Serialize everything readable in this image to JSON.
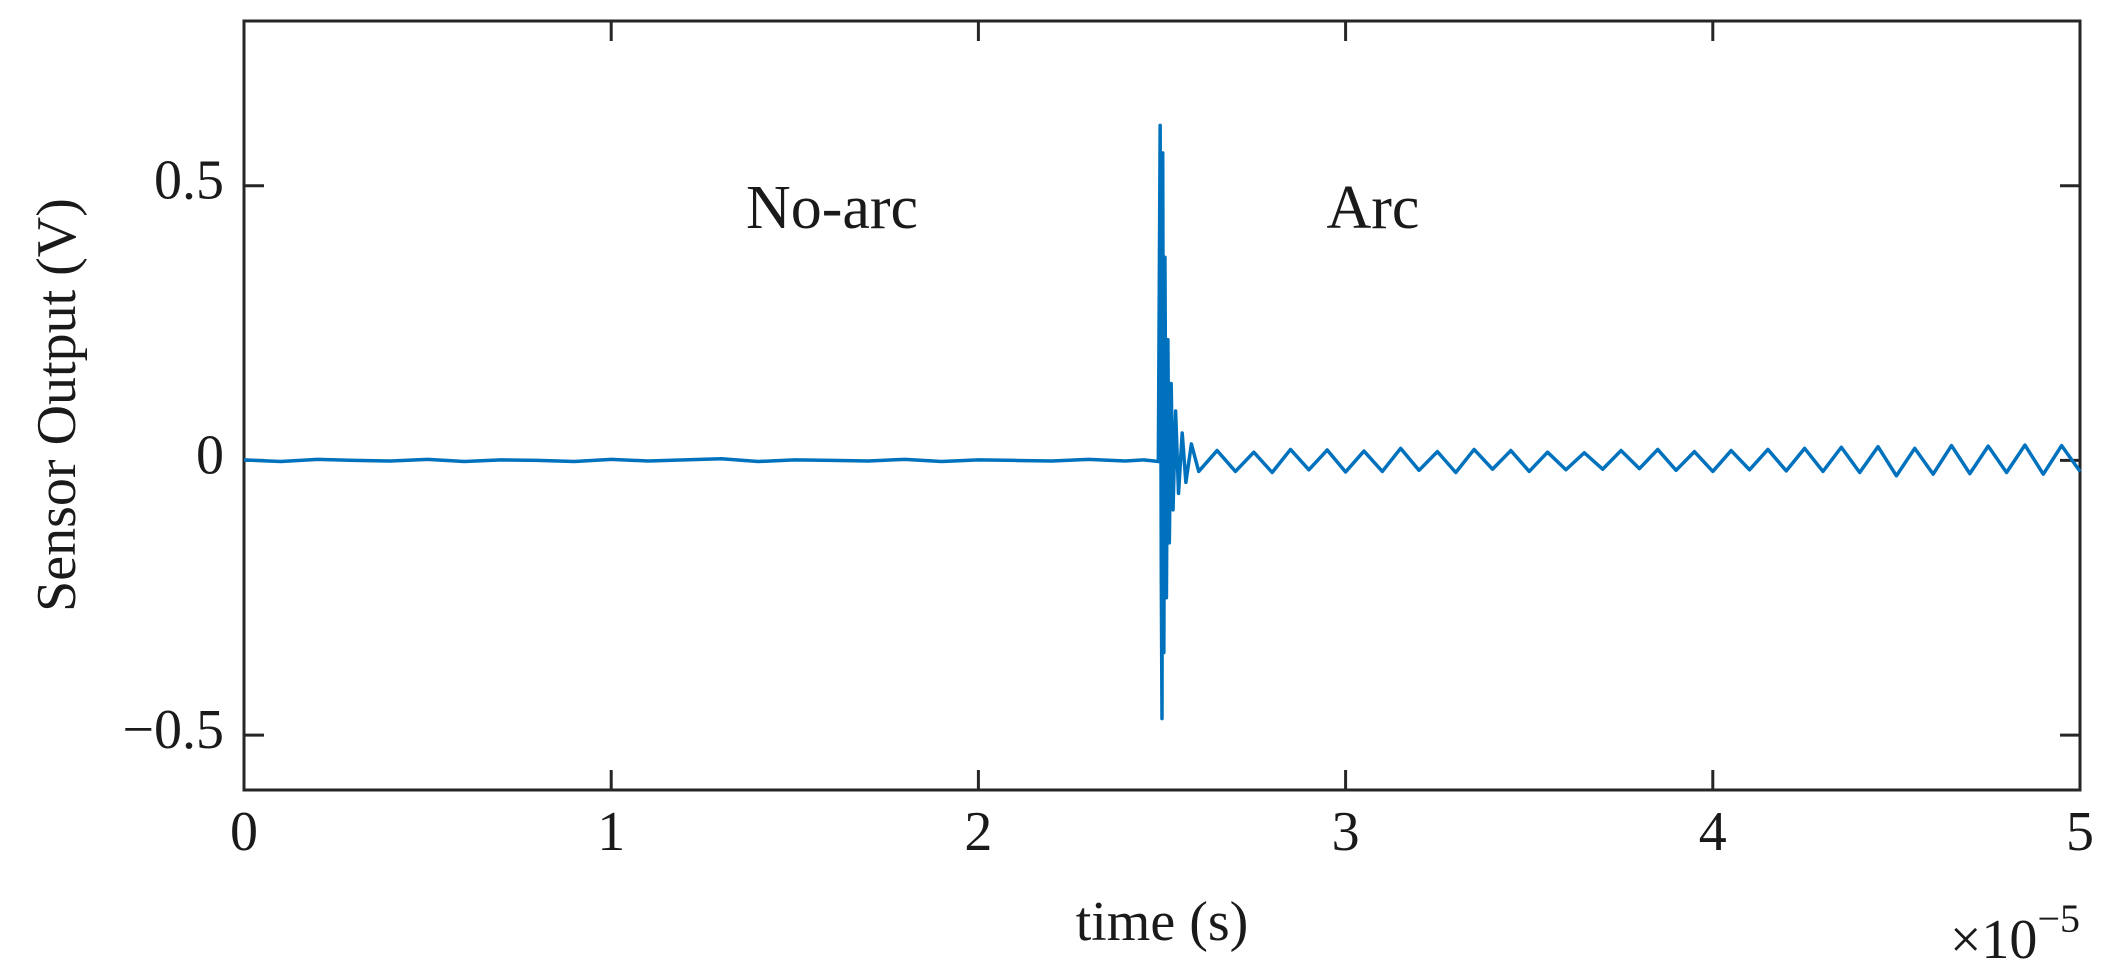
{
  "chart_data": {
    "type": "line",
    "xlabel": "time (s)",
    "ylabel": "Sensor Output (V)",
    "x_multiplier": {
      "base": "×10",
      "exponent": "−5"
    },
    "annotations": [
      "No-arc",
      "Arc"
    ],
    "xlim": [
      0,
      5
    ],
    "ylim": [
      -0.6,
      0.8
    ],
    "xticks": [
      0,
      1,
      2,
      3,
      4,
      5
    ],
    "yticks": [
      {
        "value": -0.5,
        "label": "−0.5"
      },
      0,
      0.5
    ],
    "grid": false,
    "x": [
      0,
      0.1,
      0.2,
      0.3,
      0.4,
      0.5,
      0.6,
      0.7,
      0.8,
      0.9,
      1.0,
      1.1,
      1.2,
      1.3,
      1.4,
      1.5,
      1.6,
      1.7,
      1.8,
      1.9,
      2.0,
      2.1,
      2.2,
      2.3,
      2.4,
      2.45,
      2.49,
      2.495,
      2.498,
      2.5,
      2.502,
      2.505,
      2.508,
      2.512,
      2.516,
      2.52,
      2.525,
      2.53,
      2.537,
      2.545,
      2.555,
      2.565,
      2.58,
      2.6,
      2.65,
      2.7,
      2.75,
      2.8,
      2.85,
      2.9,
      2.95,
      3.0,
      3.05,
      3.1,
      3.15,
      3.2,
      3.25,
      3.3,
      3.35,
      3.4,
      3.45,
      3.5,
      3.55,
      3.6,
      3.65,
      3.7,
      3.75,
      3.8,
      3.85,
      3.9,
      3.95,
      4.0,
      4.05,
      4.1,
      4.15,
      4.2,
      4.25,
      4.3,
      4.35,
      4.4,
      4.45,
      4.5,
      4.55,
      4.6,
      4.65,
      4.7,
      4.75,
      4.8,
      4.85,
      4.9,
      4.95,
      5.0
    ],
    "series": [
      {
        "color": "#0072bd",
        "values": [
          0.001,
          -0.002,
          0.002,
          0,
          -0.001,
          0.002,
          -0.002,
          0.001,
          0,
          -0.002,
          0.002,
          -0.001,
          0.001,
          0.003,
          -0.002,
          0.001,
          0,
          -0.001,
          0.002,
          -0.002,
          0.001,
          0,
          -0.001,
          0.002,
          -0.001,
          0.001,
          -0.002,
          0.61,
          -0.2,
          -0.47,
          0.56,
          -0.35,
          0.37,
          -0.25,
          0.22,
          -0.15,
          0.14,
          -0.09,
          0.09,
          -0.06,
          0.05,
          -0.04,
          0.03,
          -0.02,
          0.018,
          -0.02,
          0.015,
          -0.022,
          0.02,
          -0.017,
          0.019,
          -0.021,
          0.017,
          -0.02,
          0.022,
          -0.018,
          0.016,
          -0.022,
          0.02,
          -0.016,
          0.018,
          -0.02,
          0.015,
          -0.017,
          0.014,
          -0.016,
          0.018,
          -0.015,
          0.02,
          -0.018,
          0.016,
          -0.02,
          0.018,
          -0.017,
          0.02,
          -0.019,
          0.022,
          -0.02,
          0.024,
          -0.022,
          0.025,
          -0.028,
          0.022,
          -0.025,
          0.027,
          -0.024,
          0.026,
          -0.022,
          0.028,
          -0.025,
          0.027,
          -0.02
        ]
      }
    ]
  }
}
